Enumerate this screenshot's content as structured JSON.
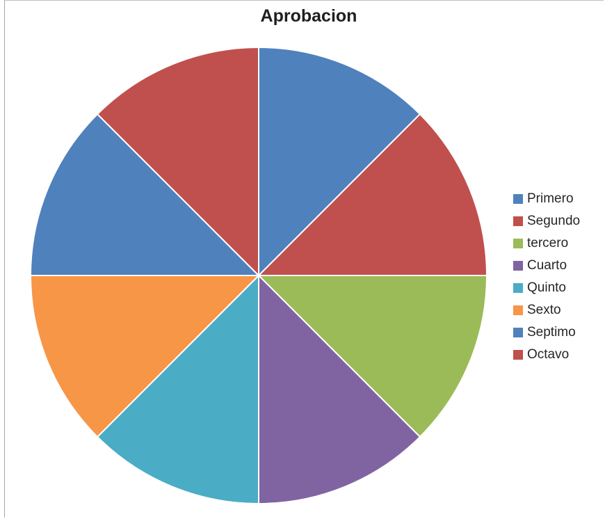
{
  "chart_data": {
    "type": "pie",
    "title": "Aprobacion",
    "categories": [
      "Primero",
      "Segundo",
      "tercero",
      "Cuarto",
      "Quinto",
      "Sexto",
      "Septimo",
      "Octavo"
    ],
    "values": [
      12.5,
      12.5,
      12.5,
      12.5,
      12.5,
      12.5,
      12.5,
      12.5
    ],
    "colors": [
      "#4f81bd",
      "#c0504d",
      "#9bbb59",
      "#8064a2",
      "#4bacc6",
      "#f79646",
      "#4f81bd",
      "#c0504d"
    ],
    "legend_position": "right"
  }
}
